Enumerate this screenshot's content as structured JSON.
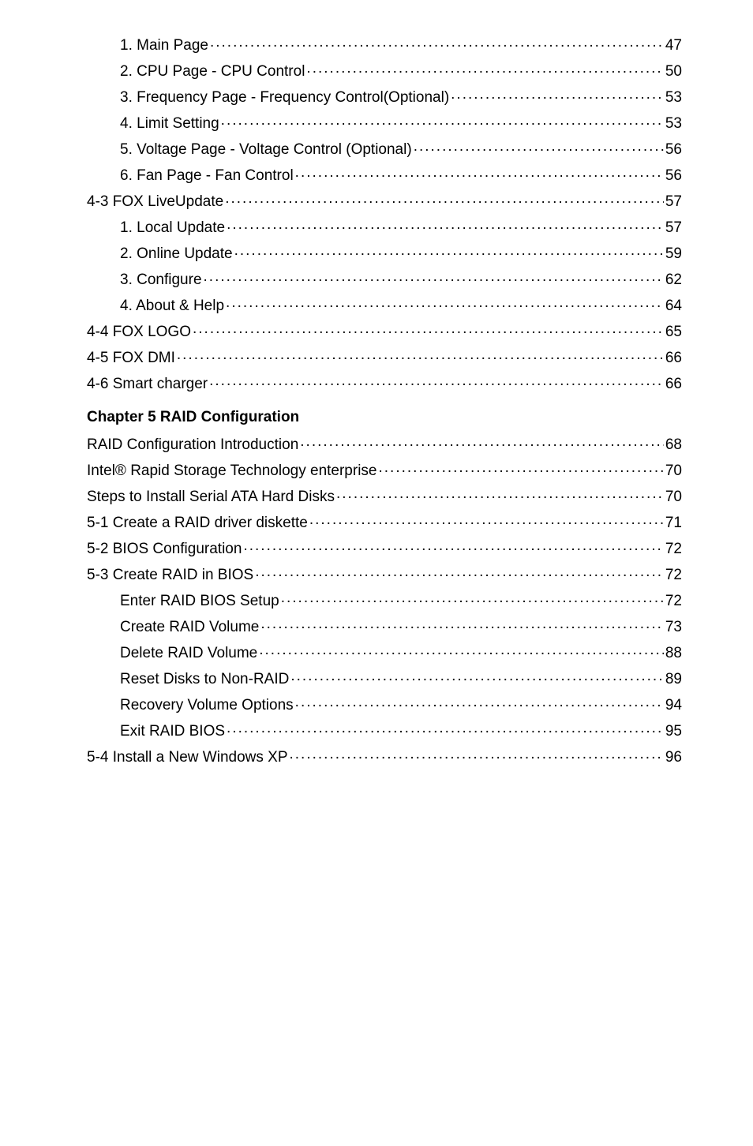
{
  "font": {
    "family": "Arial, Helvetica, sans-serif",
    "size_pt": 14
  },
  "colors": {
    "text": "#000000",
    "background": "#ffffff"
  },
  "toc": {
    "sections": [
      {
        "heading": null,
        "entries": [
          {
            "label": "1. Main Page",
            "page": "47",
            "indent": 1
          },
          {
            "label": "2. CPU Page - CPU Control",
            "page": "50",
            "indent": 1
          },
          {
            "label": "3. Frequency Page - Frequency Control(Optional)",
            "page": "53",
            "indent": 1
          },
          {
            "label": "4. Limit Setting",
            "page": "53",
            "indent": 1
          },
          {
            "label": "5. Voltage Page - Voltage Control (Optional)",
            "page": "56",
            "indent": 1
          },
          {
            "label": "6. Fan Page - Fan Control",
            "page": "56",
            "indent": 1
          },
          {
            "label": "4-3 FOX LiveUpdate",
            "page": "57",
            "indent": 0
          },
          {
            "label": "1. Local Update",
            "page": "57",
            "indent": 1
          },
          {
            "label": "2. Online Update",
            "page": "59",
            "indent": 1
          },
          {
            "label": "3. Configure",
            "page": "62",
            "indent": 1
          },
          {
            "label": "4. About & Help",
            "page": "64",
            "indent": 1
          },
          {
            "label": "4-4 FOX LOGO",
            "page": "65",
            "indent": 0
          },
          {
            "label": "4-5 FOX DMI",
            "page": "66",
            "indent": 0
          },
          {
            "label": "4-6 Smart charger",
            "page": "66",
            "indent": 0
          }
        ]
      },
      {
        "heading": "Chapter 5   RAID Configuration",
        "entries": [
          {
            "label": "RAID Configuration Introduction",
            "page": "68",
            "indent": 0
          },
          {
            "label": "Intel® Rapid Storage Technology enterprise",
            "page": "70",
            "indent": 0
          },
          {
            "label": "Steps to Install Serial ATA Hard Disks",
            "page": "70",
            "indent": 0
          },
          {
            "label": "5-1 Create a RAID driver diskette ",
            "page": "71",
            "indent": 0
          },
          {
            "label": "5-2 BIOS Configuration",
            "page": "72",
            "indent": 0
          },
          {
            "label": "5-3 Create RAID in BIOS",
            "page": "72",
            "indent": 0
          },
          {
            "label": "Enter RAID BIOS Setup",
            "page": "72",
            "indent": 1
          },
          {
            "label": "Create RAID Volume",
            "page": "73",
            "indent": 1
          },
          {
            "label": "Delete RAID Volume",
            "page": "88",
            "indent": 1
          },
          {
            "label": "Reset Disks to Non-RAID",
            "page": "89",
            "indent": 1
          },
          {
            "label": "Recovery Volume Options",
            "page": "94",
            "indent": 1
          },
          {
            "label": "Exit RAID BIOS",
            "page": "95",
            "indent": 1
          },
          {
            "label": "5-4 Install a New Windows XP",
            "page": "96",
            "indent": 0
          }
        ]
      }
    ]
  }
}
